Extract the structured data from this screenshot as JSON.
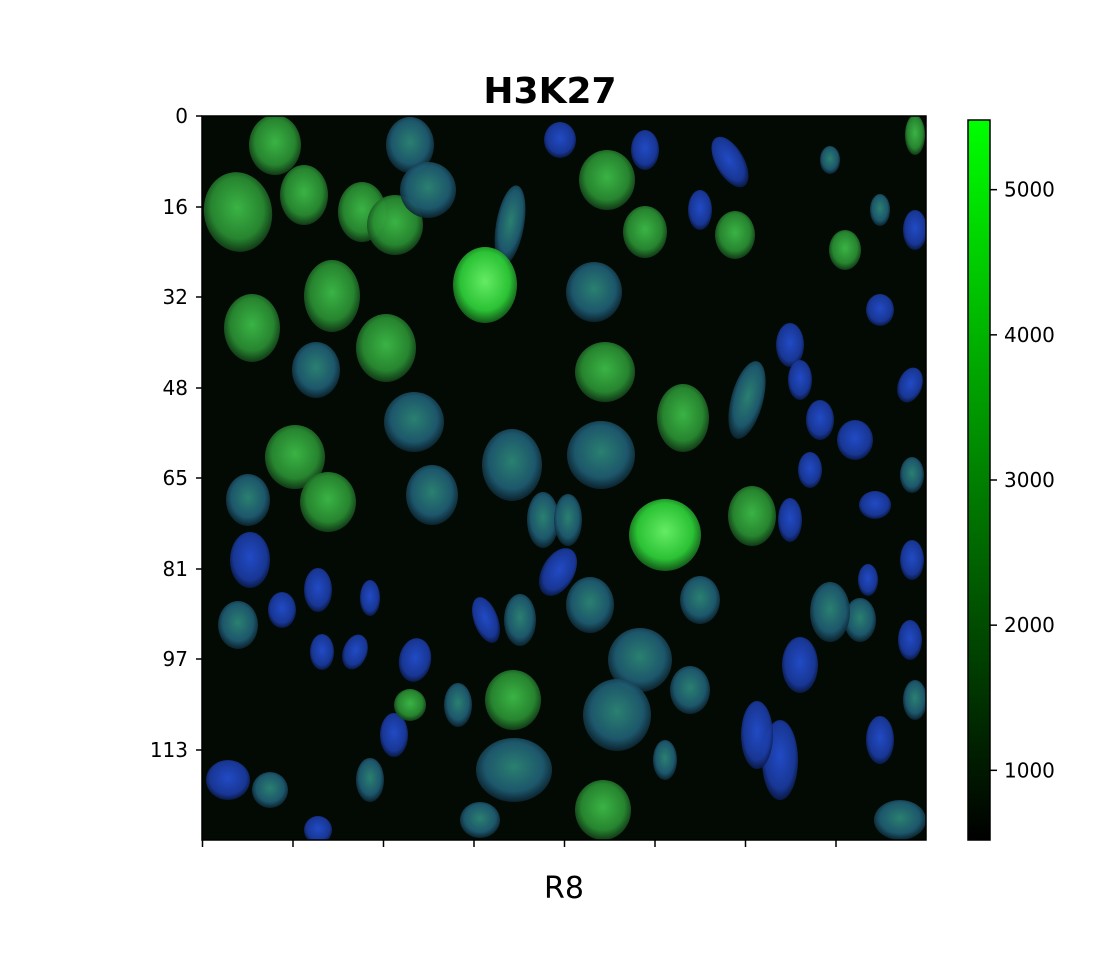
{
  "figure": {
    "title": "H3K27",
    "xlabel": "R8",
    "y_ticks": [
      "0",
      "16",
      "32",
      "48",
      "65",
      "81",
      "97",
      "113"
    ],
    "x_tick_count": 8,
    "colorbar": {
      "ticks": [
        "1000",
        "2000",
        "3000",
        "4000",
        "5000"
      ],
      "tick_values": [
        1000,
        2000,
        3000,
        4000,
        5000
      ],
      "range": [
        520,
        5480
      ],
      "colormap": [
        "#000000",
        "#00ff00"
      ]
    }
  },
  "image": {
    "description_kind": "fluorescence microscopy nuclei (green H3K27 signal over blue nuclear stain)",
    "colors": {
      "background": "#020a03",
      "nucleus_green": "#2fae3a",
      "nucleus_blue": "#1b3fb8",
      "bright": "#4cff4c"
    }
  }
}
